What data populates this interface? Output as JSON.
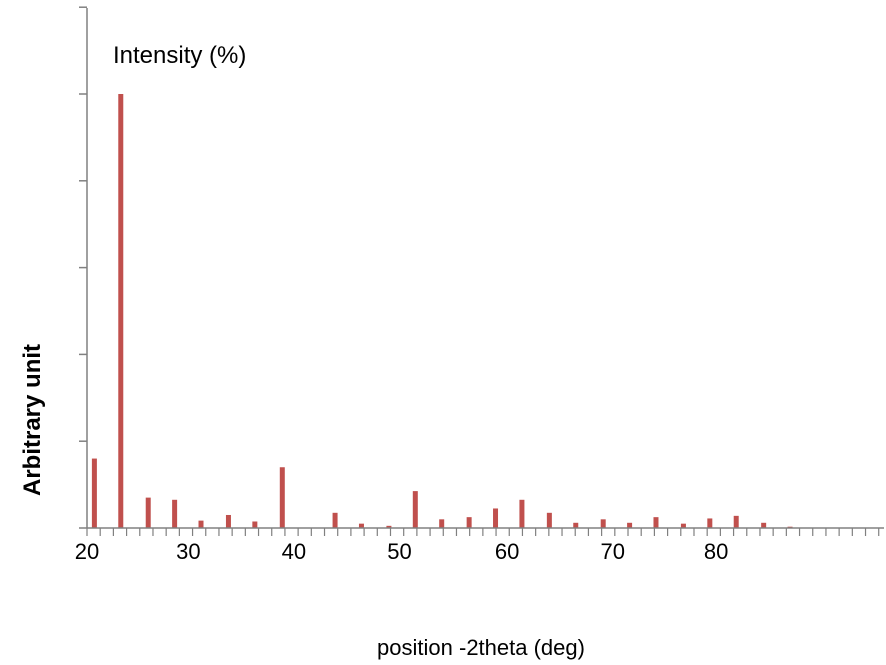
{
  "chart_data": {
    "type": "bar",
    "series_label": "Intensity (%)",
    "xlabel": "position -2theta (deg)",
    "ylabel": "Arbitrary unit",
    "x_tick_labels": [
      "20",
      "30",
      "40",
      "50",
      "60",
      "70",
      "80"
    ],
    "xlim": [
      20,
      95.5
    ],
    "ylim": [
      0,
      120
    ],
    "grid": false,
    "bar_color": "#c0504d",
    "axis_color": "#808080",
    "series": [
      {
        "x": [
          20.7,
          23.2,
          25.8,
          28.3,
          30.8,
          33.4,
          35.9,
          38.5,
          43.5,
          46.0,
          48.6,
          51.1,
          53.6,
          56.2,
          58.7,
          61.2,
          63.8,
          66.3,
          68.9,
          71.4,
          73.9,
          76.5,
          79.0,
          81.5,
          84.1,
          86.6
        ],
        "values": [
          16,
          100,
          7,
          6.5,
          1.7,
          3,
          1.5,
          14,
          3.5,
          1,
          0.5,
          8.5,
          2,
          2.5,
          4.5,
          6.5,
          3.5,
          1.2,
          2,
          1.2,
          2.5,
          1,
          2.2,
          2.8,
          1.2,
          0.3
        ]
      }
    ]
  }
}
